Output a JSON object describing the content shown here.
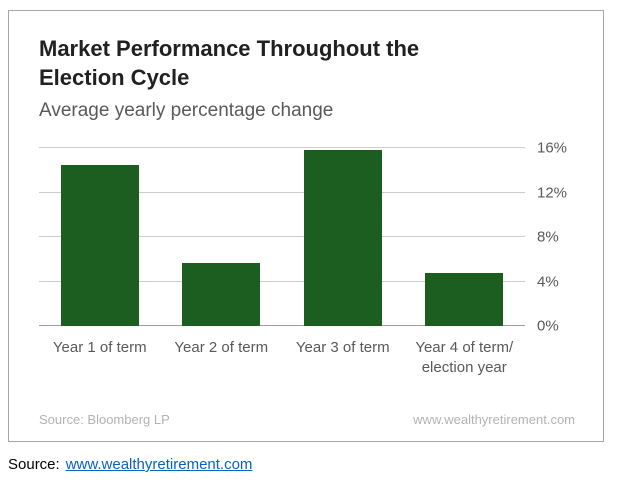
{
  "card": {
    "title": "Market Performance Throughout the Election Cycle",
    "subtitle": "Average yearly percentage change",
    "footer_left": "Source: Bloomberg LP",
    "footer_right": "www.wealthyretirement.com"
  },
  "caption": {
    "label": "Source:",
    "link": "www.wealthyretirement.com"
  },
  "colors": {
    "bar": "#1b5e20",
    "gridline": "#cccccc",
    "axis_text": "#595959"
  },
  "chart_data": {
    "type": "bar",
    "title": "Market Performance Throughout the Election Cycle",
    "subtitle": "Average yearly percentage change",
    "categories": [
      "Year 1 of term",
      "Year 2 of term",
      "Year 3 of term",
      "Year 4 of term/\nelection year"
    ],
    "values": [
      14.5,
      5.7,
      15.8,
      4.8
    ],
    "ylim": [
      0,
      16
    ],
    "ytick_values": [
      0,
      4,
      8,
      12,
      16
    ],
    "ytick_labels": [
      "0%",
      "4%",
      "8%",
      "12%",
      "16%"
    ],
    "grid": true,
    "legend": "none",
    "bar_color": "#1b5e20",
    "value_axis_side": "right",
    "xlabel": "",
    "ylabel": ""
  }
}
